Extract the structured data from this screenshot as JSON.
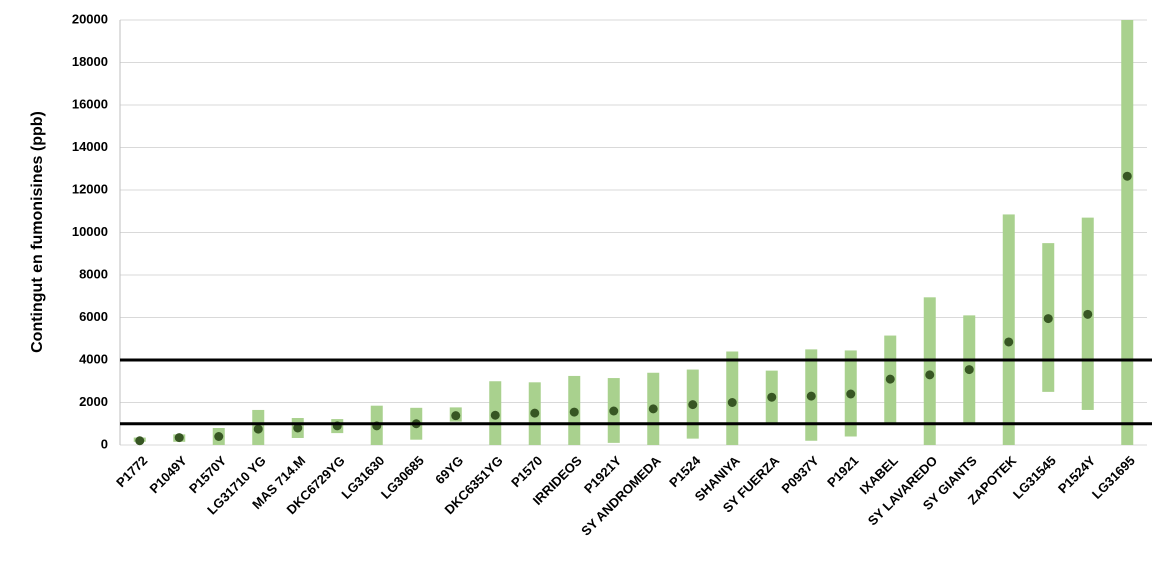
{
  "chart_data": {
    "type": "range",
    "y_label": "Contingut en fumonisines (ppb)",
    "categories": [
      "P1772",
      "P1049Y",
      "P1570Y",
      "LG31710 YG",
      "MAS 714.M",
      "DKC6729YG",
      "LG31630",
      "LG30685",
      "69YG",
      "DKC6351YG",
      "P1570",
      "IRRIDEOS",
      "P1921Y",
      "SY ANDROMEDA",
      "P1524",
      "SHANIYA",
      "SY FUERZA",
      "P0937Y",
      "P1921",
      "IXABEL",
      "SY LAVAREDO",
      "SY GIANTS",
      "ZAPOTEK",
      "LG31545",
      "P1524Y",
      "LG31695"
    ],
    "low": [
      150,
      150,
      0,
      0,
      330,
      560,
      0,
      250,
      1100,
      0,
      0,
      0,
      100,
      0,
      300,
      0,
      1050,
      200,
      400,
      1000,
      0,
      1000,
      0,
      2500,
      1650,
      0
    ],
    "high": [
      350,
      500,
      800,
      1650,
      1270,
      1220,
      1850,
      1750,
      1770,
      3000,
      2950,
      3250,
      3150,
      3400,
      3550,
      4400,
      3500,
      4500,
      4450,
      5150,
      6950,
      6100,
      10850,
      9500,
      10700,
      20000
    ],
    "mean": [
      200,
      350,
      400,
      750,
      800,
      900,
      900,
      1000,
      1380,
      1400,
      1500,
      1550,
      1600,
      1700,
      1900,
      2000,
      2250,
      2300,
      2400,
      3100,
      3300,
      3550,
      4850,
      5950,
      6150,
      12650
    ],
    "bar_color": "#a9d18e",
    "mean_color": "#375623",
    "hlines": [
      4000,
      1000
    ],
    "hline_color": "#000000",
    "ylim": [
      0,
      20000
    ],
    "yticks": [
      0,
      2000,
      4000,
      6000,
      8000,
      10000,
      12000,
      14000,
      16000,
      18000,
      20000
    ],
    "grid": true
  }
}
